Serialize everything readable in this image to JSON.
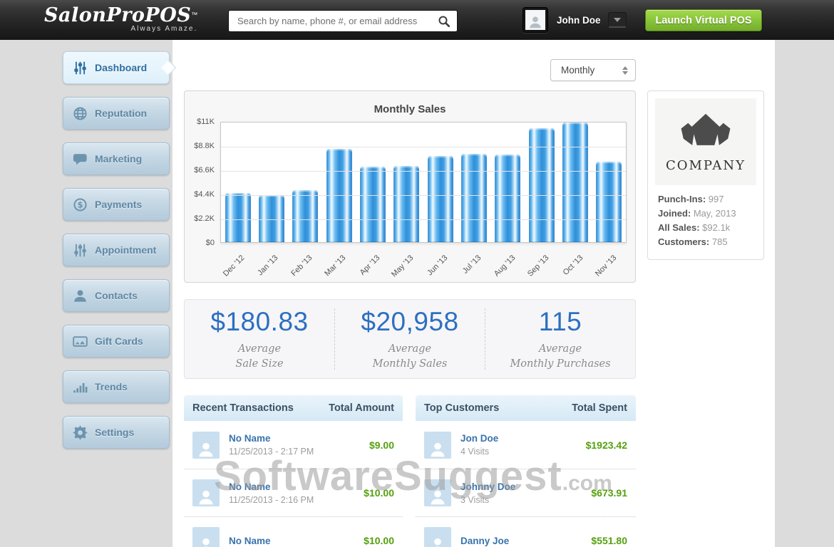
{
  "topbar": {
    "logo": {
      "title": "SalonProPOS",
      "tm": "™",
      "tagline": "Always Amaze."
    },
    "search": {
      "placeholder": "Search by name, phone #, or email address"
    },
    "user": {
      "name": "John Doe"
    },
    "launch_button": "Launch Virtual POS"
  },
  "sidebar": {
    "items": [
      {
        "label": "Dashboard",
        "icon": "sliders-icon",
        "active": true
      },
      {
        "label": "Reputation",
        "icon": "globe-icon",
        "active": false
      },
      {
        "label": "Marketing",
        "icon": "chat-icon",
        "active": false
      },
      {
        "label": "Payments",
        "icon": "dollar-icon",
        "active": false
      },
      {
        "label": "Appointment",
        "icon": "sliders-icon",
        "active": false
      },
      {
        "label": "Contacts",
        "icon": "person-icon",
        "active": false
      },
      {
        "label": "Gift Cards",
        "icon": "giftcard-icon",
        "active": false
      },
      {
        "label": "Trends",
        "icon": "bar-chart-icon",
        "active": false
      },
      {
        "label": "Settings",
        "icon": "gear-icon",
        "active": false
      }
    ]
  },
  "controls": {
    "period_select": {
      "value": "Monthly"
    }
  },
  "chart_data": {
    "type": "bar",
    "title": "Monthly Sales",
    "categories": [
      "Dec '12",
      "Jan '13",
      "Feb '13",
      "Mar '13",
      "Apr '13",
      "May '13",
      "Jun '13",
      "Jul '13",
      "Aug '13",
      "Sep '13",
      "Oct '13",
      "Nov '13"
    ],
    "values": [
      4450,
      4300,
      4700,
      8500,
      6850,
      6950,
      7850,
      8050,
      7950,
      10350,
      10900,
      7300
    ],
    "xlabel": "",
    "ylabel": "",
    "ylim": [
      0,
      11000
    ],
    "tick_values": [
      0,
      2200,
      4400,
      6600,
      8800,
      11000
    ],
    "yticks": [
      "$0",
      "$2.2K",
      "$4.4K",
      "$6.6K",
      "$8.8K",
      "$11K"
    ],
    "grid": true,
    "legend_position": "none",
    "bar_color": "#3399e8"
  },
  "company_card": {
    "name": "COMPANY",
    "stats": [
      {
        "label": "Punch-Ins:",
        "value": "997"
      },
      {
        "label": "Joined:",
        "value": "May, 2013"
      },
      {
        "label": "All Sales:",
        "value": "$92.1k"
      },
      {
        "label": "Customers:",
        "value": "785"
      }
    ]
  },
  "summary_stats": [
    {
      "value": "$180.83",
      "label_lines": [
        "Average",
        "Sale Size"
      ]
    },
    {
      "value": "$20,958",
      "label_lines": [
        "Average",
        "Monthly Sales"
      ]
    },
    {
      "value": "115",
      "label_lines": [
        "Average",
        "Monthly Purchases"
      ]
    }
  ],
  "transactions": {
    "title": "Recent Transactions",
    "amount_header": "Total Amount",
    "rows": [
      {
        "name": "No Name",
        "subtitle": "11/25/2013 - 2:17 PM",
        "amount": "$9.00"
      },
      {
        "name": "No Name",
        "subtitle": "11/25/2013 - 2:16 PM",
        "amount": "$10.00"
      },
      {
        "name": "No Name",
        "subtitle": "",
        "amount": "$10.00"
      }
    ]
  },
  "customers": {
    "title": "Top Customers",
    "amount_header": "Total Spent",
    "rows": [
      {
        "name": "Jon Doe",
        "subtitle": "4 Visits",
        "amount": "$1923.42"
      },
      {
        "name": "Johnny Doe",
        "subtitle": "3 Visits",
        "amount": "$673.91"
      },
      {
        "name": "Danny Joe",
        "subtitle": "",
        "amount": "$551.80"
      }
    ]
  },
  "watermark": {
    "main": "SoftwareSuggest",
    "suffix": ".com"
  },
  "colors": {
    "accent_blue": "#2d6fc1",
    "bar_blue": "#3399e8",
    "amount_green": "#55a00e",
    "button_green": "#8cc63e",
    "sidebar_text": "#5e87a5"
  }
}
